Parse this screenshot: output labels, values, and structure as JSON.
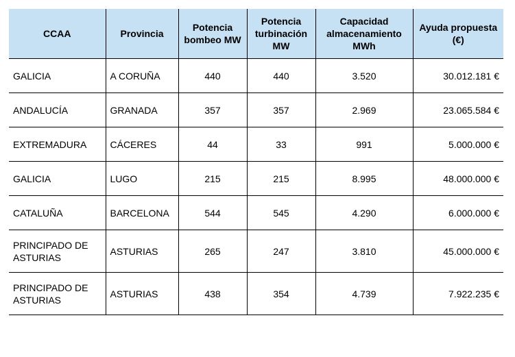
{
  "table": {
    "headers": [
      "CCAA",
      "Provincia",
      "Potencia\nbombeo MW",
      "Potencia\nturbinación\nMW",
      "Capacidad\nalmacenamiento\nMWh",
      "Ayuda propuesta\n(€)"
    ],
    "rows": [
      [
        "GALICIA",
        "A CORUÑA",
        "440",
        "440",
        "3.520",
        "30.012.181 €"
      ],
      [
        "ANDALUCÍA",
        "GRANADA",
        "357",
        "357",
        "2.969",
        "23.065.584 €"
      ],
      [
        "EXTREMADURA",
        "CÁCERES",
        "44",
        "33",
        "991",
        "5.000.000 €"
      ],
      [
        "GALICIA",
        "LUGO",
        "215",
        "215",
        "8.995",
        "48.000.000 €"
      ],
      [
        "CATALUÑA",
        "BARCELONA",
        "544",
        "545",
        "4.290",
        "6.000.000 €"
      ],
      [
        "PRINCIPADO DE\nASTURIAS",
        "ASTURIAS",
        "265",
        "247",
        "3.810",
        "45.000.000 €"
      ],
      [
        "PRINCIPADO DE\nASTURIAS",
        "ASTURIAS",
        "438",
        "354",
        "4.739",
        "7.922.235 €"
      ]
    ]
  },
  "colors": {
    "header_background": "#c6e0f4",
    "border": "#000000"
  }
}
